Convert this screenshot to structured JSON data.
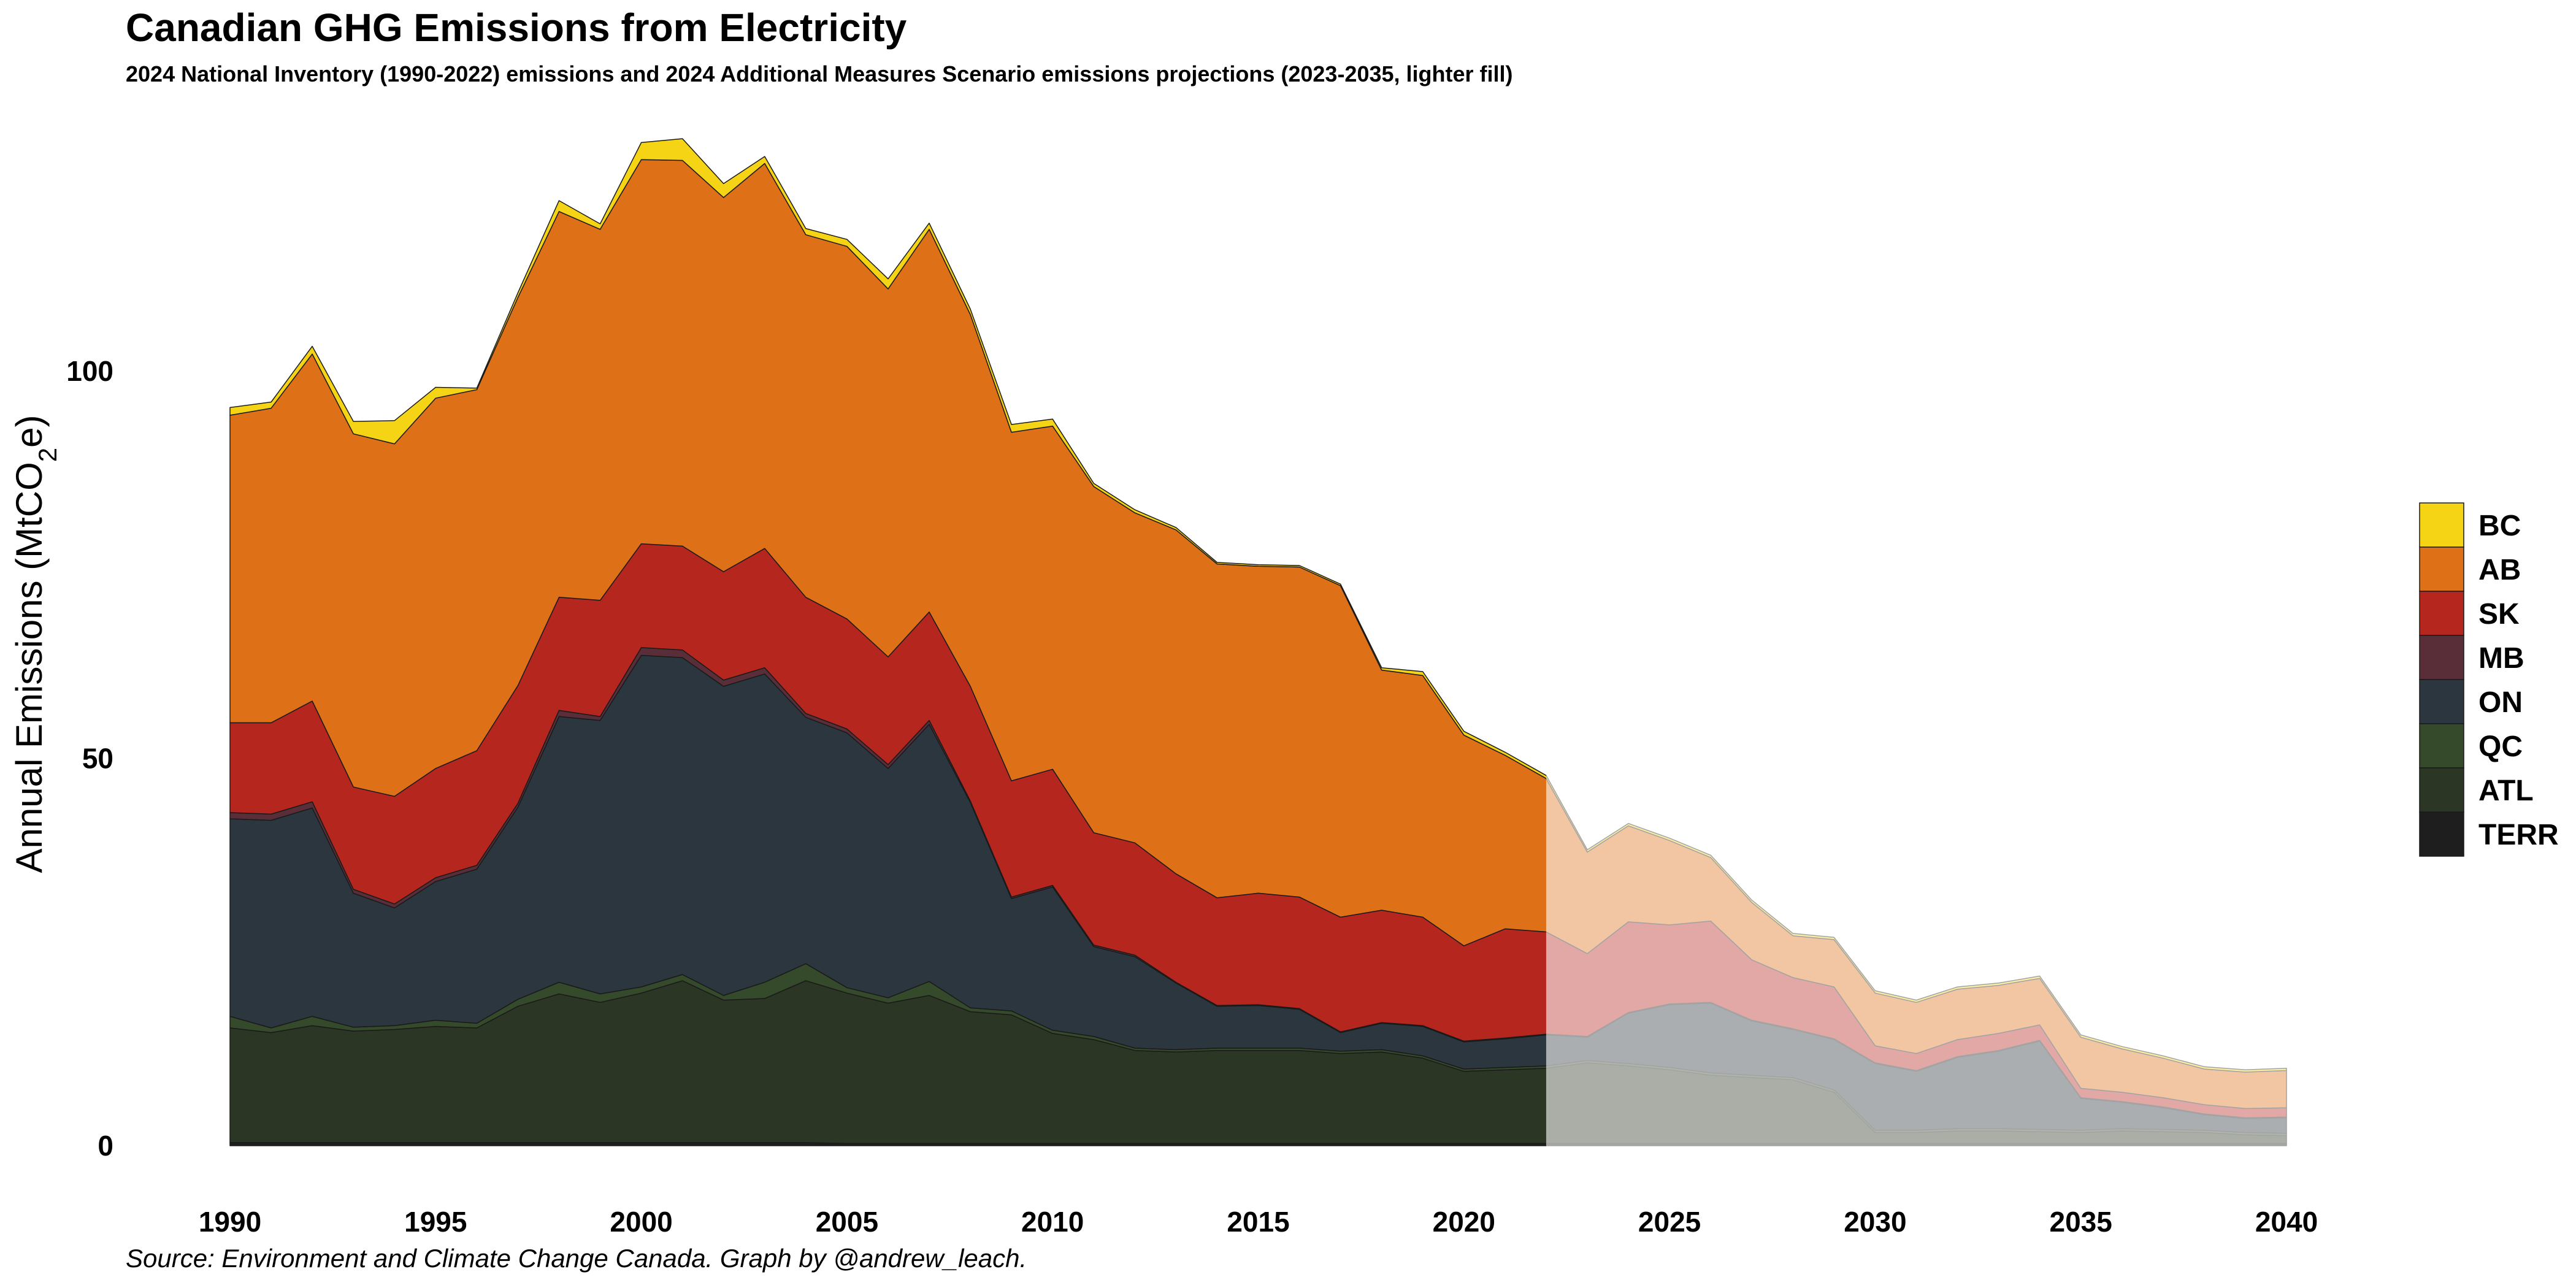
{
  "title": "Canadian GHG Emissions from Electricity",
  "subtitle": "2024 National Inventory (1990-2022) emissions and 2024 Additional Measures Scenario emissions projections (2023-2035, lighter fill)",
  "caption": "Source: Environment and Climate Change Canada. Graph by @andrew_leach.",
  "chart_data": {
    "type": "area",
    "stacked": true,
    "ylabel": "Annual Emissions (MtCO2e)",
    "xlabel": "",
    "xlim": [
      1990,
      2040
    ],
    "ylim": [
      0,
      130
    ],
    "x_ticks": [
      1990,
      1995,
      2000,
      2005,
      2010,
      2015,
      2020,
      2025,
      2030,
      2035,
      2040
    ],
    "y_ticks": [
      0,
      50,
      100
    ],
    "grid": false,
    "legend_position": "right",
    "historical_end": 2022,
    "projection_start": 2022,
    "projection_note": "lighter fill",
    "years": [
      1990,
      1991,
      1992,
      1993,
      1994,
      1995,
      1996,
      1997,
      1998,
      1999,
      2000,
      2001,
      2002,
      2003,
      2004,
      2005,
      2006,
      2007,
      2008,
      2009,
      2010,
      2011,
      2012,
      2013,
      2014,
      2015,
      2016,
      2017,
      2018,
      2019,
      2020,
      2021,
      2022,
      2023,
      2024,
      2025,
      2026,
      2027,
      2028,
      2029,
      2030,
      2031,
      2032,
      2033,
      2034,
      2035,
      2036,
      2037,
      2038,
      2039,
      2040
    ],
    "series": [
      {
        "name": "TERR",
        "color": "#1e1e1e",
        "values": [
          0.4,
          0.4,
          0.4,
          0.4,
          0.4,
          0.4,
          0.4,
          0.4,
          0.4,
          0.4,
          0.4,
          0.4,
          0.4,
          0.4,
          0.4,
          0.3,
          0.3,
          0.3,
          0.3,
          0.3,
          0.3,
          0.3,
          0.3,
          0.3,
          0.3,
          0.3,
          0.3,
          0.3,
          0.3,
          0.3,
          0.3,
          0.3,
          0.3,
          0.3,
          0.3,
          0.3,
          0.3,
          0.3,
          0.3,
          0.3,
          0.3,
          0.3,
          0.3,
          0.3,
          0.3,
          0.3,
          0.3,
          0.3,
          0.3,
          0.3,
          0.3
        ]
      },
      {
        "name": "ATL",
        "color": "#2c3624",
        "values": [
          14.8,
          14.2,
          15.1,
          14.4,
          14.6,
          15.0,
          14.8,
          17.6,
          19.2,
          18.1,
          19.3,
          20.9,
          18.4,
          18.6,
          20.9,
          19.4,
          18.1,
          19.1,
          17.0,
          16.6,
          14.2,
          13.4,
          12.0,
          11.8,
          12.0,
          12.0,
          12.0,
          11.6,
          11.8,
          11.0,
          9.3,
          9.5,
          9.7,
          10.4,
          10.0,
          9.5,
          8.8,
          8.5,
          8.2,
          6.6,
          1.4,
          1.4,
          1.6,
          1.6,
          1.5,
          1.4,
          1.6,
          1.5,
          1.4,
          1.1,
          1.0
        ]
      },
      {
        "name": "QC",
        "color": "#344a2a",
        "values": [
          1.5,
          0.6,
          1.2,
          0.5,
          0.5,
          0.8,
          0.6,
          0.9,
          1.5,
          1.1,
          0.8,
          0.8,
          0.6,
          2.1,
          2.2,
          0.7,
          0.7,
          1.8,
          0.5,
          0.5,
          0.4,
          0.4,
          0.3,
          0.3,
          0.3,
          0.3,
          0.3,
          0.3,
          0.3,
          0.3,
          0.3,
          0.3,
          0.3,
          0.3,
          0.3,
          0.3,
          0.3,
          0.3,
          0.3,
          0.3,
          0.3,
          0.3,
          0.3,
          0.3,
          0.3,
          0.3,
          0.3,
          0.3,
          0.3,
          0.3,
          0.3
        ]
      },
      {
        "name": "ON",
        "color": "#2b363e",
        "values": [
          25.5,
          26.8,
          26.9,
          17.3,
          15.2,
          17.9,
          19.9,
          24.8,
          34.3,
          35.3,
          42.8,
          40.9,
          39.9,
          39.8,
          31.8,
          32.9,
          29.6,
          33.2,
          26.5,
          14.5,
          18.5,
          11.6,
          11.8,
          8.6,
          5.4,
          5.5,
          5.0,
          2.4,
          3.4,
          3.8,
          3.5,
          3.7,
          4.0,
          3.0,
          6.5,
          8.1,
          9.0,
          7.0,
          6.2,
          6.5,
          8.6,
          7.6,
          9.2,
          10.0,
          11.4,
          4.1,
          3.4,
          2.8,
          2.0,
          1.8,
          2.0
        ]
      },
      {
        "name": "MB",
        "color": "#5a2e38",
        "values": [
          0.8,
          0.8,
          0.8,
          0.5,
          0.5,
          0.5,
          0.5,
          0.5,
          0.8,
          0.5,
          1.0,
          1.0,
          0.8,
          0.8,
          0.5,
          0.5,
          0.5,
          0.5,
          0.2,
          0.2,
          0.2,
          0.2,
          0.2,
          0.1,
          0.1,
          0.1,
          0.1,
          0.1,
          0.1,
          0.1,
          0.1,
          0.1,
          0.1,
          0.1,
          0.1,
          0.1,
          0.1,
          0.1,
          0.1,
          0.1,
          0.1,
          0.1,
          0.1,
          0.1,
          0.1,
          0.1,
          0.1,
          0.1,
          0.1,
          0.1,
          0.1
        ]
      },
      {
        "name": "SK",
        "color": "#b5261e",
        "values": [
          11.6,
          11.8,
          13.0,
          13.2,
          13.9,
          14.1,
          14.8,
          15.2,
          14.6,
          15.0,
          13.4,
          13.4,
          14.0,
          15.4,
          15.0,
          14.2,
          13.9,
          14.0,
          14.8,
          15.0,
          15.0,
          14.5,
          14.5,
          14.0,
          13.9,
          14.4,
          14.4,
          14.8,
          14.5,
          14.0,
          12.3,
          14.1,
          13.2,
          10.7,
          11.7,
          10.2,
          10.5,
          7.8,
          6.6,
          6.7,
          2.2,
          2.2,
          2.2,
          2.2,
          2.0,
          1.2,
          1.2,
          1.2,
          1.2,
          1.2,
          1.2
        ]
      },
      {
        "name": "AB",
        "color": "#de7017",
        "values": [
          39.7,
          40.6,
          44.8,
          45.6,
          45.5,
          47.8,
          46.6,
          50.1,
          49.8,
          47.9,
          49.6,
          49.8,
          48.3,
          49.7,
          46.8,
          48.1,
          47.5,
          49.4,
          48.0,
          45.0,
          44.3,
          44.7,
          42.6,
          44.4,
          43.1,
          42.2,
          42.6,
          42.8,
          31.0,
          31.2,
          27.2,
          22.4,
          19.8,
          13.1,
          12.4,
          10.9,
          8.2,
          7.4,
          5.4,
          6.1,
          6.8,
          6.6,
          6.5,
          6.2,
          6.0,
          6.6,
          5.6,
          5.1,
          4.6,
          4.7,
          4.8
        ]
      },
      {
        "name": "BC",
        "color": "#f5d416",
        "values": [
          1.0,
          0.8,
          1.0,
          1.6,
          3.0,
          1.4,
          0.2,
          0.6,
          1.4,
          0.7,
          2.2,
          2.8,
          1.8,
          0.9,
          0.8,
          0.9,
          1.3,
          0.8,
          0.7,
          1.0,
          0.9,
          0.4,
          0.4,
          0.3,
          0.2,
          0.2,
          0.2,
          0.2,
          0.3,
          0.5,
          0.5,
          0.4,
          0.4,
          0.3,
          0.3,
          0.3,
          0.3,
          0.3,
          0.3,
          0.3,
          0.3,
          0.3,
          0.3,
          0.3,
          0.3,
          0.3,
          0.3,
          0.3,
          0.3,
          0.3,
          0.3
        ]
      }
    ]
  }
}
